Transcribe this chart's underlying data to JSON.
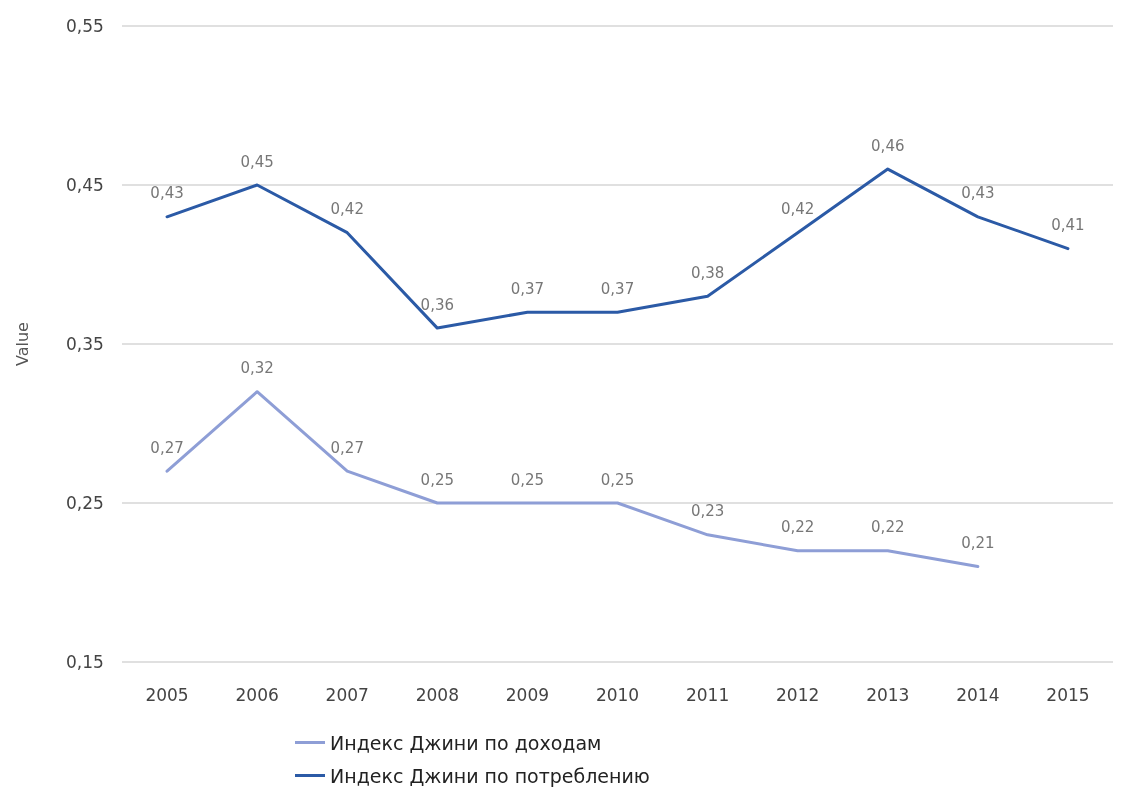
{
  "chart_data": {
    "type": "line",
    "ylabel": "Value",
    "categories": [
      "2005",
      "2006",
      "2007",
      "2008",
      "2009",
      "2010",
      "2011",
      "2012",
      "2013",
      "2014",
      "2015"
    ],
    "series": [
      {
        "name": "Индекс Джини по доходам",
        "color": "#8e9ed6",
        "values": [
          0.27,
          0.32,
          0.27,
          0.25,
          0.25,
          0.25,
          0.23,
          0.22,
          0.22,
          0.21,
          null
        ],
        "value_labels": [
          "0,27",
          "0,32",
          "0,27",
          "0,25",
          "0,25",
          "0,25",
          "0,23",
          "0,22",
          "0,22",
          "0,21",
          null
        ]
      },
      {
        "name": "Индекс Джини по потреблению",
        "color": "#2b5aa6",
        "values": [
          0.43,
          0.45,
          0.42,
          0.36,
          0.37,
          0.37,
          0.38,
          0.42,
          0.46,
          0.43,
          0.41
        ],
        "value_labels": [
          "0,43",
          "0,45",
          "0,42",
          "0,36",
          "0,37",
          "0,37",
          "0,38",
          "0,42",
          "0,46",
          "0,43",
          "0,41"
        ]
      }
    ],
    "ylim": [
      0.15,
      0.55
    ],
    "yticks": [
      {
        "value": 0.15,
        "label": "0,15"
      },
      {
        "value": 0.25,
        "label": "0,25"
      },
      {
        "value": 0.35,
        "label": "0,35"
      },
      {
        "value": 0.45,
        "label": "0,45"
      },
      {
        "value": 0.55,
        "label": "0,55"
      }
    ],
    "grid": "y",
    "legend": "bottom",
    "marker": "none",
    "line_style": "solid"
  }
}
